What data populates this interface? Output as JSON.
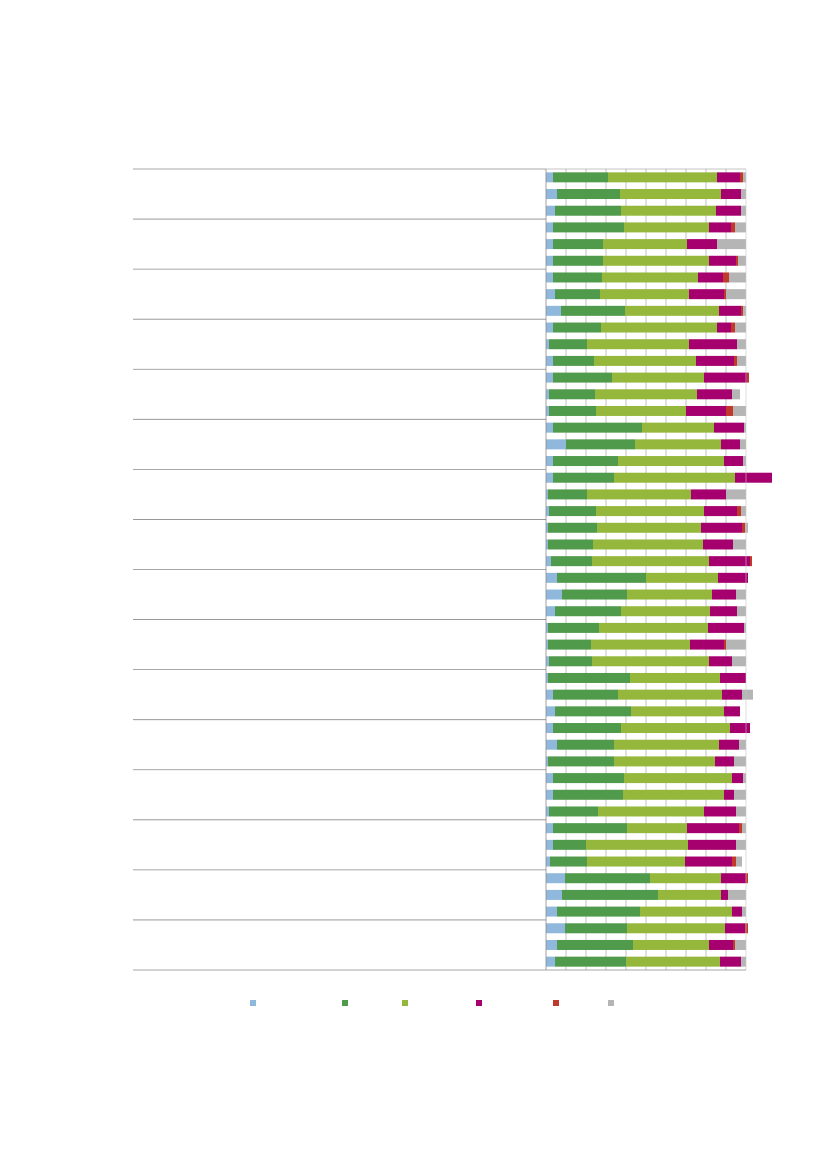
{
  "chart_data": {
    "type": "bar",
    "orientation": "horizontal",
    "stacked": "percent",
    "xlim": [
      0,
      100
    ],
    "grid": true,
    "legend_position": "bottom",
    "groups": 16,
    "rows_per_group": 3,
    "series": [
      {
        "color": "#8fb8dc",
        "values": [
          3.5,
          5.5,
          4.5,
          3.5,
          3.5,
          3.5,
          3.5,
          4.5,
          7.5,
          3.5,
          1.5,
          3.5,
          3.5,
          1.5,
          1.5,
          3.5,
          10,
          3.5,
          3.5,
          1,
          1.5,
          1,
          1,
          2.5,
          5.5,
          8,
          4.5,
          1,
          1,
          1.5,
          1,
          3.5,
          4.5,
          3.5,
          5.5,
          1,
          3.5,
          3.5,
          1.5,
          3.5,
          3.5,
          2,
          9.5,
          8,
          5.5,
          9.5,
          5.5,
          4.5
        ]
      },
      {
        "color": "#4f9a4b",
        "values": [
          27.5,
          31.5,
          33,
          35.5,
          25,
          25,
          24.5,
          22.5,
          32,
          24,
          19,
          20.5,
          29.5,
          23,
          23.5,
          44.5,
          34.5,
          32.5,
          30.5,
          19.5,
          23.5,
          24.5,
          22.5,
          20.5,
          44.5,
          32.5,
          33,
          25.5,
          21.5,
          21.5,
          41,
          32.5,
          38,
          34,
          28.5,
          33,
          35.5,
          35,
          24.5,
          37,
          16.5,
          18.5,
          42.5,
          48,
          41.5,
          31,
          38,
          35.5
        ]
      },
      {
        "color": "#95b83c",
        "values": [
          54.5,
          50.5,
          47.5,
          42.5,
          42,
          53,
          48,
          44.5,
          47,
          58,
          51,
          51,
          46,
          51,
          45,
          36,
          43,
          53,
          60.5,
          52,
          54,
          52,
          55,
          58.5,
          36,
          42.5,
          44.5,
          54.5,
          49.5,
          58.5,
          45,
          52,
          46.5,
          54.5,
          52.5,
          50.5,
          54,
          50.5,
          53,
          30,
          51,
          49,
          35.5,
          31.5,
          46,
          49,
          38,
          47
        ]
      },
      {
        "color": "#a5006d",
        "values": [
          11.5,
          10,
          12.5,
          11,
          15,
          13.5,
          12.5,
          17.5,
          11,
          7,
          24,
          19,
          21.5,
          17.5,
          20,
          15,
          9.5,
          9.5,
          18.5,
          17.5,
          16.5,
          20.5,
          15,
          20.5,
          15,
          12,
          13.5,
          18,
          17,
          11.5,
          13,
          10,
          8,
          10,
          10,
          9.5,
          5.5,
          5,
          16,
          26,
          24,
          23.5,
          12.5,
          3.5,
          5,
          10,
          12,
          10.5
        ]
      },
      {
        "color": "#c0392b",
        "values": [
          1.5,
          0,
          0,
          2,
          0,
          1,
          3,
          1,
          1,
          2,
          0,
          1.5,
          1,
          0,
          3.5,
          0,
          0,
          0,
          0,
          0,
          2,
          1.5,
          0,
          1,
          0,
          0,
          0,
          0,
          1,
          0,
          0,
          0,
          0,
          0,
          0,
          0,
          0,
          0,
          0,
          1.5,
          0,
          2,
          1,
          0,
          0,
          1.5,
          1,
          0
        ]
      },
      {
        "color": "#b5b5b5",
        "values": [
          1.5,
          2.5,
          2.5,
          5.5,
          14.5,
          4,
          8.5,
          10,
          1.5,
          5.5,
          4.5,
          4.5,
          0,
          4,
          6.5,
          1,
          3,
          1.5,
          0,
          10,
          2.5,
          1.5,
          6.5,
          0,
          0,
          5,
          4.5,
          1,
          10,
          7,
          0,
          5.5,
          0,
          0,
          3.5,
          6,
          1.5,
          6,
          5,
          2,
          5,
          3,
          0,
          9,
          2,
          0,
          5.5,
          2.5
        ]
      }
    ]
  },
  "legend": {
    "items": [
      {
        "label": "",
        "color": "#8fb8dc"
      },
      {
        "label": "",
        "color": "#4f9a4b"
      },
      {
        "label": "",
        "color": "#95b83c"
      },
      {
        "label": "",
        "color": "#a5006d"
      },
      {
        "label": "",
        "color": "#c0392b"
      },
      {
        "label": "",
        "color": "#b5b5b5"
      }
    ]
  }
}
